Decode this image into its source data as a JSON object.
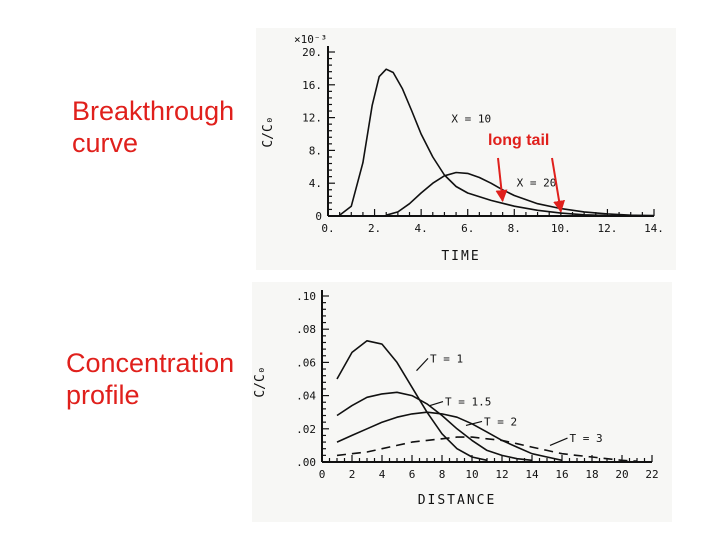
{
  "labels": {
    "breakthrough": "Breakthrough\ncurve",
    "concentration": "Concentration\nprofile"
  },
  "annotation": {
    "text": "long tail",
    "color": "#e0201c"
  },
  "colors": {
    "label": "#e0201c",
    "ink": "#111111",
    "figure_bg": "#f7f7f5"
  },
  "chart_data": [
    {
      "type": "line",
      "xlabel": "TIME",
      "ylabel": "C/C₀",
      "yscale_note": "×10⁻³",
      "xlim": [
        0,
        14
      ],
      "ylim": [
        0,
        20
      ],
      "xticks": [
        0,
        2,
        4,
        6,
        8,
        10,
        12,
        14
      ],
      "xtick_labels": [
        "0.",
        "2.",
        "4.",
        "6.",
        "8.",
        "10.",
        "12.",
        "14."
      ],
      "yticks": [
        0,
        4,
        8,
        12,
        16,
        20
      ],
      "ytick_labels": [
        "0",
        "4.",
        "8.",
        "12.",
        "16.",
        "20."
      ],
      "series": [
        {
          "name": "X = 10",
          "dash": false,
          "x": [
            0.5,
            1.0,
            1.5,
            1.9,
            2.2,
            2.5,
            2.8,
            3.2,
            3.6,
            4.0,
            4.5,
            5.0,
            5.5,
            6.0,
            7.0,
            8.0,
            9.0,
            10.0,
            11.0,
            12.0
          ],
          "y": [
            0.1,
            1.2,
            6.5,
            13.5,
            17.0,
            17.9,
            17.5,
            15.5,
            12.8,
            10.0,
            7.2,
            5.0,
            3.6,
            2.8,
            1.9,
            1.2,
            0.7,
            0.35,
            0.15,
            0.05
          ]
        },
        {
          "name": "X = 20",
          "dash": false,
          "x": [
            2.5,
            3.0,
            3.5,
            4.0,
            4.5,
            5.0,
            5.5,
            6.0,
            6.5,
            7.0,
            7.5,
            8.0,
            9.0,
            10.0,
            11.0,
            12.0,
            13.0,
            14.0
          ],
          "y": [
            0.1,
            0.5,
            1.5,
            2.8,
            4.0,
            4.9,
            5.3,
            5.2,
            4.7,
            4.0,
            3.2,
            2.5,
            1.5,
            0.9,
            0.5,
            0.25,
            0.1,
            0.05
          ]
        }
      ],
      "series_labels": [
        {
          "text": "X = 10",
          "series": 0,
          "x": 5.3,
          "y": 11.4
        },
        {
          "text": "X = 20",
          "series": 1,
          "x": 8.1,
          "y": 3.6
        }
      ],
      "annotation_targets": [
        {
          "x": 7.5,
          "y": 1.6
        },
        {
          "x": 10.0,
          "y": 0.3
        }
      ]
    },
    {
      "type": "line",
      "xlabel": "DISTANCE",
      "ylabel": "C/C₀",
      "xlim": [
        0,
        22
      ],
      "ylim": [
        0,
        0.1
      ],
      "xticks": [
        0,
        2,
        4,
        6,
        8,
        10,
        12,
        14,
        16,
        18,
        20,
        22
      ],
      "xtick_labels": [
        "0",
        "2",
        "4",
        "6",
        "8",
        "10",
        "12",
        "14",
        "16",
        "18",
        "20",
        "22"
      ],
      "yticks": [
        0,
        0.02,
        0.04,
        0.06,
        0.08,
        0.1
      ],
      "ytick_labels": [
        ".00",
        ".02",
        ".04",
        ".06",
        ".08",
        ".10"
      ],
      "series": [
        {
          "name": "T = 1",
          "dash": false,
          "x": [
            1,
            2,
            3,
            4,
            5,
            6,
            7,
            8,
            9,
            10,
            11
          ],
          "y": [
            0.05,
            0.066,
            0.073,
            0.071,
            0.06,
            0.045,
            0.03,
            0.017,
            0.008,
            0.003,
            0.001
          ]
        },
        {
          "name": "T = 1.5",
          "dash": false,
          "x": [
            1,
            2,
            3,
            4,
            5,
            6,
            7,
            8,
            9,
            10,
            11,
            12,
            13,
            14
          ],
          "y": [
            0.028,
            0.034,
            0.039,
            0.041,
            0.042,
            0.04,
            0.035,
            0.028,
            0.02,
            0.013,
            0.007,
            0.004,
            0.002,
            0.001
          ]
        },
        {
          "name": "T = 2",
          "dash": false,
          "x": [
            1,
            2,
            3,
            4,
            5,
            6,
            7,
            8,
            9,
            10,
            11,
            12,
            13,
            14,
            15,
            16
          ],
          "y": [
            0.012,
            0.016,
            0.02,
            0.024,
            0.027,
            0.029,
            0.03,
            0.029,
            0.027,
            0.023,
            0.018,
            0.013,
            0.009,
            0.005,
            0.003,
            0.001
          ]
        },
        {
          "name": "T = 3",
          "dash": true,
          "x": [
            1,
            2,
            3,
            4,
            5,
            6,
            7,
            8,
            9,
            10,
            11,
            12,
            13,
            14,
            15,
            16,
            17,
            18,
            19,
            20,
            21
          ],
          "y": [
            0.004,
            0.005,
            0.006,
            0.008,
            0.01,
            0.012,
            0.013,
            0.014,
            0.015,
            0.015,
            0.014,
            0.013,
            0.011,
            0.009,
            0.007,
            0.005,
            0.004,
            0.003,
            0.002,
            0.001,
            0.0005
          ]
        }
      ],
      "series_labels": [
        {
          "text": "T = 1",
          "series": 0,
          "x": 7.2,
          "y": 0.06,
          "lx": 6.3,
          "ly": 0.055
        },
        {
          "text": "T = 1.5",
          "series": 1,
          "x": 8.2,
          "y": 0.034,
          "lx": 7.2,
          "ly": 0.034
        },
        {
          "text": "T = 2",
          "series": 2,
          "x": 10.8,
          "y": 0.022,
          "lx": 9.6,
          "ly": 0.022
        },
        {
          "text": "T = 3",
          "series": 3,
          "x": 16.5,
          "y": 0.012,
          "lx": 15.2,
          "ly": 0.01
        }
      ]
    }
  ]
}
